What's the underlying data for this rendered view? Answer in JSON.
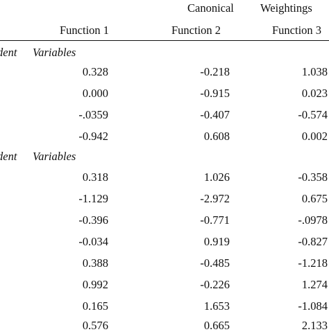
{
  "header": {
    "group_title_left": "Canonical",
    "group_title_right": "Weightings",
    "columns": [
      "Function 1",
      "Function 2",
      "Function 3"
    ]
  },
  "sections": [
    {
      "label_fragment": "dent",
      "label": "Variables",
      "rows": [
        [
          "0.328",
          "-0.218",
          "1.038"
        ],
        [
          "0.000",
          "-0.915",
          "0.023"
        ],
        [
          "-.0359",
          "-0.407",
          "-0.574"
        ],
        [
          "-0.942",
          "0.608",
          "0.002"
        ]
      ]
    },
    {
      "label_fragment": "dent",
      "label": "Variables",
      "rows": [
        [
          "0.318",
          "1.026",
          "-0.358"
        ],
        [
          "-1.129",
          "-2.972",
          "0.675"
        ],
        [
          "-0.396",
          "-0.771",
          "-.0978"
        ],
        [
          "-0.034",
          "0.919",
          "-0.827"
        ],
        [
          "0.388",
          "-0.485",
          "-1.218"
        ],
        [
          "0.992",
          "-0.226",
          "1.274"
        ],
        [
          "0.165",
          "1.653",
          "-1.084"
        ],
        [
          "0.576",
          "0.665",
          "2.133"
        ]
      ]
    }
  ]
}
